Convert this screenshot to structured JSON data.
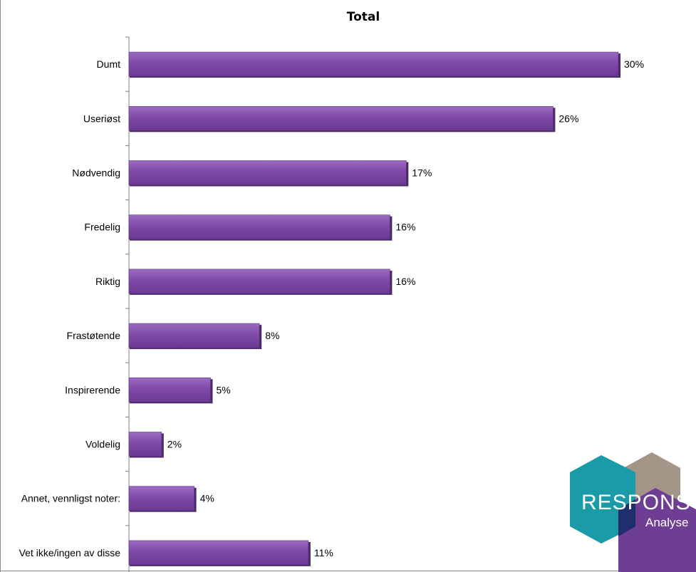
{
  "chart_data": {
    "type": "bar",
    "orientation": "horizontal",
    "title": "Total",
    "categories": [
      "Dumt",
      "Useriøst",
      "Nødvendig",
      "Fredelig",
      "Riktig",
      "Frastøtende",
      "Inspirerende",
      "Voldelig",
      "Annet, vennligst noter:",
      "Vet ikke/ingen av disse"
    ],
    "values": [
      30,
      26,
      17,
      16,
      16,
      8,
      5,
      2,
      4,
      11
    ],
    "value_labels": [
      "30%",
      "26%",
      "17%",
      "16%",
      "16%",
      "8%",
      "5%",
      "2%",
      "4%",
      "11%"
    ],
    "xlim": [
      0,
      35
    ],
    "grid": false,
    "legend": "none",
    "bar_color": "#7f4aa8",
    "bar_edge_color": "#4c2a68"
  },
  "logo": {
    "brand": "RESPONS",
    "sub": "Analyse",
    "colors": [
      "#1b9aa8",
      "#6e3e94",
      "#a09488",
      "#1e2f6b"
    ]
  }
}
